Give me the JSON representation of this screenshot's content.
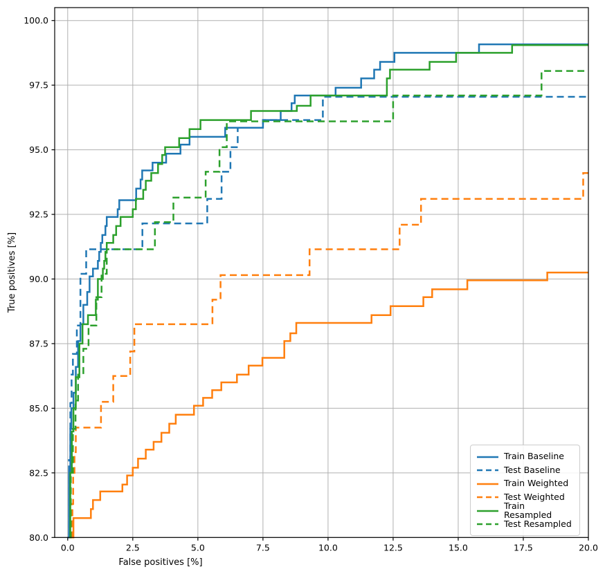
{
  "chart_data": {
    "type": "line",
    "subtype": "roc-step-curves",
    "title": "",
    "xlabel": "False positives [%]",
    "ylabel": "True positives [%]",
    "xlim": [
      -0.5,
      20
    ],
    "ylim": [
      80,
      100.5
    ],
    "xticks": [
      0,
      2.5,
      5,
      7.5,
      10,
      12.5,
      15,
      17.5,
      20
    ],
    "xtick_labels": [
      "0.0",
      "2.5",
      "5.0",
      "7.5",
      "10.0",
      "12.5",
      "15.0",
      "17.5",
      "20.0"
    ],
    "yticks": [
      80,
      82.5,
      85,
      87.5,
      90,
      92.5,
      95,
      97.5,
      100
    ],
    "ytick_labels": [
      "80.0",
      "82.5",
      "85.0",
      "87.5",
      "90.0",
      "92.5",
      "95.0",
      "97.5",
      "100.0"
    ],
    "grid": true,
    "grid_color": "#b0b0b0",
    "spine_color": "#000000",
    "background": "#ffffff",
    "legend_position": "lower right",
    "colors": {
      "baseline": "#1f77b4",
      "weighted": "#ff7f0e",
      "resampled": "#2ca02c"
    },
    "series": [
      {
        "name": "Train Baseline",
        "color": "#1f77b4",
        "linestyle": "solid",
        "points": [
          [
            0.0,
            80.0
          ],
          [
            0.05,
            82.5
          ],
          [
            0.1,
            84.2
          ],
          [
            0.14,
            85.0
          ],
          [
            0.22,
            85.6
          ],
          [
            0.31,
            86.6
          ],
          [
            0.4,
            87.6
          ],
          [
            0.49,
            88.25
          ],
          [
            0.6,
            89.0
          ],
          [
            0.75,
            89.5
          ],
          [
            0.84,
            90.1
          ],
          [
            0.97,
            90.4
          ],
          [
            1.16,
            90.7
          ],
          [
            1.21,
            91.05
          ],
          [
            1.27,
            91.4
          ],
          [
            1.33,
            91.7
          ],
          [
            1.45,
            92.05
          ],
          [
            1.5,
            92.4
          ],
          [
            1.92,
            92.7
          ],
          [
            1.98,
            93.05
          ],
          [
            2.63,
            93.5
          ],
          [
            2.8,
            93.85
          ],
          [
            2.86,
            94.2
          ],
          [
            3.26,
            94.5
          ],
          [
            3.78,
            94.85
          ],
          [
            4.33,
            95.2
          ],
          [
            4.68,
            95.5
          ],
          [
            6.05,
            95.85
          ],
          [
            7.5,
            96.15
          ],
          [
            8.18,
            96.5
          ],
          [
            8.6,
            96.8
          ],
          [
            8.72,
            97.1
          ],
          [
            10.29,
            97.4
          ],
          [
            11.27,
            97.76
          ],
          [
            11.77,
            98.1
          ],
          [
            12.0,
            98.4
          ],
          [
            12.55,
            98.75
          ],
          [
            15.8,
            99.08
          ],
          [
            20.0,
            99.08
          ]
        ]
      },
      {
        "name": "Test Baseline",
        "color": "#1f77b4",
        "linestyle": "dashed",
        "points": [
          [
            0.0,
            80.0
          ],
          [
            0.05,
            83.0
          ],
          [
            0.1,
            85.2
          ],
          [
            0.15,
            86.3
          ],
          [
            0.2,
            87.1
          ],
          [
            0.35,
            88.2
          ],
          [
            0.49,
            90.2
          ],
          [
            0.71,
            91.15
          ],
          [
            2.87,
            92.15
          ],
          [
            5.36,
            93.1
          ],
          [
            5.91,
            94.15
          ],
          [
            6.25,
            95.1
          ],
          [
            6.53,
            95.85
          ],
          [
            7.5,
            96.15
          ],
          [
            9.8,
            97.05
          ],
          [
            20.0,
            97.05
          ]
        ]
      },
      {
        "name": "Train Weighted",
        "color": "#ff7f0e",
        "linestyle": "solid",
        "points": [
          [
            0.2,
            80.0
          ],
          [
            0.22,
            80.75
          ],
          [
            0.89,
            81.1
          ],
          [
            0.97,
            81.45
          ],
          [
            1.25,
            81.78
          ],
          [
            2.1,
            82.05
          ],
          [
            2.28,
            82.4
          ],
          [
            2.5,
            82.7
          ],
          [
            2.7,
            83.05
          ],
          [
            3.0,
            83.4
          ],
          [
            3.3,
            83.7
          ],
          [
            3.6,
            84.05
          ],
          [
            3.9,
            84.4
          ],
          [
            4.15,
            84.75
          ],
          [
            4.85,
            85.1
          ],
          [
            5.2,
            85.4
          ],
          [
            5.55,
            85.7
          ],
          [
            5.9,
            86.0
          ],
          [
            6.5,
            86.3
          ],
          [
            6.95,
            86.65
          ],
          [
            7.48,
            86.95
          ],
          [
            8.32,
            87.6
          ],
          [
            8.55,
            87.9
          ],
          [
            8.78,
            88.3
          ],
          [
            11.67,
            88.6
          ],
          [
            12.4,
            88.95
          ],
          [
            13.66,
            89.3
          ],
          [
            14.0,
            89.6
          ],
          [
            15.35,
            89.95
          ],
          [
            18.42,
            90.25
          ],
          [
            20.0,
            90.25
          ]
        ]
      },
      {
        "name": "Test Weighted",
        "color": "#ff7f0e",
        "linestyle": "dashed",
        "points": [
          [
            0.15,
            80.0
          ],
          [
            0.18,
            81.3
          ],
          [
            0.21,
            82.5
          ],
          [
            0.26,
            83.3
          ],
          [
            0.31,
            84.25
          ],
          [
            1.28,
            85.25
          ],
          [
            1.75,
            86.25
          ],
          [
            2.4,
            87.2
          ],
          [
            2.56,
            88.25
          ],
          [
            5.56,
            89.2
          ],
          [
            5.87,
            90.15
          ],
          [
            9.29,
            91.15
          ],
          [
            12.75,
            92.1
          ],
          [
            13.57,
            93.1
          ],
          [
            19.8,
            94.1
          ],
          [
            20.0,
            94.1
          ]
        ]
      },
      {
        "name": "Train Resampled",
        "color": "#2ca02c",
        "linestyle": "solid",
        "points": [
          [
            0.06,
            80.0
          ],
          [
            0.1,
            82.5
          ],
          [
            0.16,
            84.1
          ],
          [
            0.22,
            85.0
          ],
          [
            0.31,
            86.2
          ],
          [
            0.45,
            87.5
          ],
          [
            0.57,
            88.25
          ],
          [
            0.78,
            88.6
          ],
          [
            1.08,
            89.2
          ],
          [
            1.16,
            90.0
          ],
          [
            1.35,
            90.4
          ],
          [
            1.4,
            90.7
          ],
          [
            1.45,
            91.05
          ],
          [
            1.5,
            91.4
          ],
          [
            1.75,
            91.7
          ],
          [
            1.86,
            92.05
          ],
          [
            2.03,
            92.4
          ],
          [
            2.5,
            92.7
          ],
          [
            2.62,
            93.1
          ],
          [
            2.9,
            93.45
          ],
          [
            3.0,
            93.8
          ],
          [
            3.21,
            94.1
          ],
          [
            3.47,
            94.45
          ],
          [
            3.63,
            94.8
          ],
          [
            3.74,
            95.1
          ],
          [
            4.28,
            95.45
          ],
          [
            4.68,
            95.8
          ],
          [
            5.1,
            96.15
          ],
          [
            7.04,
            96.5
          ],
          [
            8.8,
            96.7
          ],
          [
            9.33,
            97.1
          ],
          [
            12.26,
            97.76
          ],
          [
            12.38,
            98.1
          ],
          [
            13.9,
            98.4
          ],
          [
            14.92,
            98.75
          ],
          [
            17.07,
            99.05
          ],
          [
            20.0,
            99.05
          ]
        ]
      },
      {
        "name": "Test Resampled",
        "color": "#2ca02c",
        "linestyle": "dashed",
        "points": [
          [
            0.08,
            80.0
          ],
          [
            0.12,
            82.5
          ],
          [
            0.2,
            84.2
          ],
          [
            0.3,
            85.3
          ],
          [
            0.4,
            86.3
          ],
          [
            0.6,
            87.3
          ],
          [
            0.8,
            88.2
          ],
          [
            1.1,
            89.3
          ],
          [
            1.3,
            90.2
          ],
          [
            1.5,
            91.15
          ],
          [
            3.35,
            92.2
          ],
          [
            4.06,
            93.15
          ],
          [
            5.3,
            94.15
          ],
          [
            5.83,
            95.1
          ],
          [
            6.11,
            96.1
          ],
          [
            12.5,
            97.1
          ],
          [
            18.2,
            98.05
          ],
          [
            20.0,
            98.05
          ]
        ]
      }
    ]
  }
}
